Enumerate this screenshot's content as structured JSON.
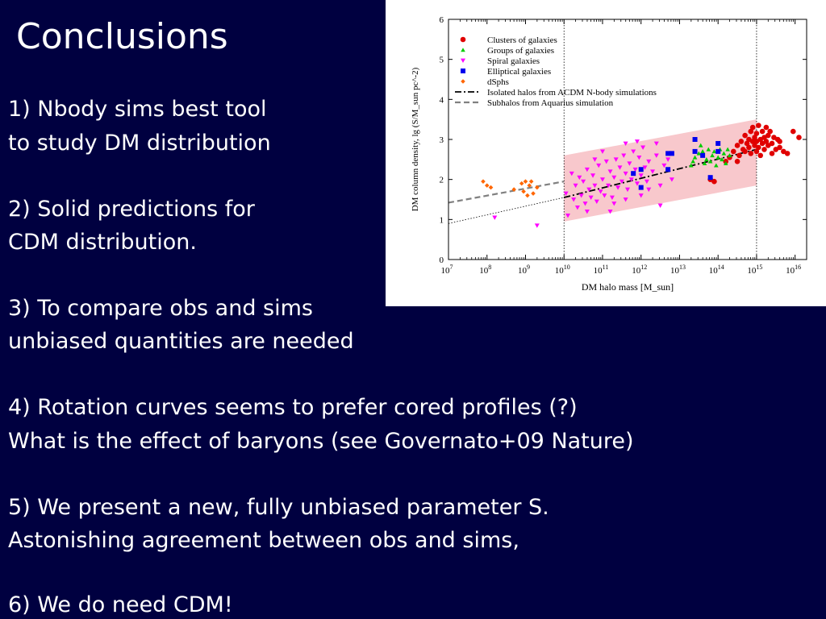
{
  "slide": {
    "title": "Conclusions",
    "lines": [
      "1) Nbody sims best tool",
      "to study DM distribution",
      "2) Solid predictions for",
      "CDM distribution.",
      "3) To compare obs and sims",
      "unbiased quantities are needed",
      "4) Rotation curves seems to prefer cored profiles (?)",
      "What is the effect of baryons (see Governato+09 Nature)",
      "5) We present a new, fully unbiased parameter S.",
      "Astonishing agreement between obs and sims,",
      "6) We do need CDM!"
    ]
  },
  "chart_data": {
    "type": "scatter",
    "xlabel": "DM halo mass [M_sun]",
    "ylabel": "DM column density, lg (S/M_sun pc^-2)",
    "x_scale": "log",
    "xlim": [
      7,
      16.3
    ],
    "ylim": [
      0,
      6
    ],
    "x_ticks": [
      {
        "exp": 7,
        "label": "10",
        "sup": "7"
      },
      {
        "exp": 8,
        "label": "10",
        "sup": "8"
      },
      {
        "exp": 9,
        "label": "10",
        "sup": "9"
      },
      {
        "exp": 10,
        "label": "10",
        "sup": "10"
      },
      {
        "exp": 11,
        "label": "10",
        "sup": "11"
      },
      {
        "exp": 12,
        "label": "10",
        "sup": "12"
      },
      {
        "exp": 13,
        "label": "10",
        "sup": "13"
      },
      {
        "exp": 14,
        "label": "10",
        "sup": "14"
      },
      {
        "exp": 15,
        "label": "10",
        "sup": "15"
      },
      {
        "exp": 16,
        "label": "10",
        "sup": "16"
      }
    ],
    "y_ticks": [
      "0",
      "1",
      "2",
      "3",
      "4",
      "5",
      "6"
    ],
    "legend_position": "top-left",
    "band": {
      "color": "#f8c8cc",
      "x": [
        10,
        15
      ],
      "lower": [
        0.95,
        1.85
      ],
      "upper": [
        2.6,
        3.5
      ]
    },
    "vertical_lines_x": [
      10,
      15
    ],
    "series": [
      {
        "name": "Clusters of galaxies",
        "marker": "circle",
        "color": "#e00000",
        "points": [
          [
            14.4,
            2.7
          ],
          [
            14.5,
            2.85
          ],
          [
            14.55,
            2.6
          ],
          [
            14.6,
            2.95
          ],
          [
            14.65,
            2.75
          ],
          [
            14.7,
            3.1
          ],
          [
            14.7,
            2.7
          ],
          [
            14.75,
            2.9
          ],
          [
            14.8,
            3.0
          ],
          [
            14.8,
            2.8
          ],
          [
            14.85,
            3.2
          ],
          [
            14.85,
            2.65
          ],
          [
            14.9,
            2.95
          ],
          [
            14.9,
            3.3
          ],
          [
            14.95,
            2.85
          ],
          [
            14.95,
            3.05
          ],
          [
            15.0,
            2.7
          ],
          [
            15.0,
            3.15
          ],
          [
            15.0,
            2.95
          ],
          [
            15.05,
            3.35
          ],
          [
            15.05,
            2.8
          ],
          [
            15.1,
            3.0
          ],
          [
            15.1,
            2.6
          ],
          [
            15.15,
            3.2
          ],
          [
            15.15,
            2.9
          ],
          [
            15.2,
            3.05
          ],
          [
            15.2,
            2.75
          ],
          [
            15.25,
            3.3
          ],
          [
            15.25,
            2.95
          ],
          [
            15.3,
            2.85
          ],
          [
            15.3,
            3.1
          ],
          [
            15.35,
            3.2
          ],
          [
            15.4,
            2.9
          ],
          [
            15.45,
            3.05
          ],
          [
            15.5,
            2.75
          ],
          [
            15.55,
            3.0
          ],
          [
            15.6,
            2.8
          ],
          [
            15.7,
            2.7
          ],
          [
            15.8,
            2.65
          ],
          [
            15.95,
            3.2
          ],
          [
            16.1,
            3.05
          ],
          [
            14.3,
            2.55
          ],
          [
            14.2,
            2.45
          ],
          [
            13.9,
            1.95
          ],
          [
            13.8,
            2.0
          ],
          [
            14.5,
            2.45
          ],
          [
            15.4,
            2.65
          ],
          [
            15.6,
            2.95
          ]
        ]
      },
      {
        "name": "Groups of galaxies",
        "marker": "triangle-up",
        "color": "#00cc00",
        "points": [
          [
            13.3,
            2.35
          ],
          [
            13.35,
            2.45
          ],
          [
            13.4,
            2.55
          ],
          [
            13.5,
            2.65
          ],
          [
            13.6,
            2.7
          ],
          [
            13.7,
            2.5
          ],
          [
            13.75,
            2.75
          ],
          [
            13.8,
            2.45
          ],
          [
            13.85,
            2.6
          ],
          [
            13.9,
            2.7
          ],
          [
            14.0,
            2.55
          ],
          [
            14.05,
            2.75
          ],
          [
            14.1,
            2.5
          ],
          [
            14.15,
            2.65
          ],
          [
            14.2,
            2.4
          ],
          [
            14.3,
            2.6
          ],
          [
            13.55,
            2.85
          ],
          [
            13.65,
            2.4
          ],
          [
            14.25,
            2.75
          ],
          [
            13.95,
            2.35
          ]
        ]
      },
      {
        "name": "Spiral galaxies",
        "marker": "triangle-down",
        "color": "#ff00ff",
        "points": [
          [
            8.2,
            1.05
          ],
          [
            9.3,
            0.85
          ],
          [
            10.05,
            1.65
          ],
          [
            10.1,
            1.1
          ],
          [
            10.2,
            2.15
          ],
          [
            10.25,
            1.5
          ],
          [
            10.3,
            1.85
          ],
          [
            10.35,
            1.3
          ],
          [
            10.4,
            2.05
          ],
          [
            10.45,
            1.6
          ],
          [
            10.5,
            1.95
          ],
          [
            10.55,
            1.4
          ],
          [
            10.6,
            2.25
          ],
          [
            10.65,
            1.75
          ],
          [
            10.7,
            1.55
          ],
          [
            10.75,
            2.1
          ],
          [
            10.8,
            1.85
          ],
          [
            10.85,
            1.45
          ],
          [
            10.9,
            2.35
          ],
          [
            10.95,
            1.7
          ],
          [
            11.0,
            2.0
          ],
          [
            11.05,
            1.6
          ],
          [
            11.1,
            2.45
          ],
          [
            11.15,
            1.85
          ],
          [
            11.2,
            2.2
          ],
          [
            11.25,
            1.55
          ],
          [
            11.3,
            2.05
          ],
          [
            11.35,
            2.5
          ],
          [
            11.4,
            1.8
          ],
          [
            11.45,
            2.3
          ],
          [
            11.5,
            1.95
          ],
          [
            11.55,
            2.6
          ],
          [
            11.6,
            2.15
          ],
          [
            11.65,
            1.75
          ],
          [
            11.7,
            2.4
          ],
          [
            11.75,
            2.0
          ],
          [
            11.8,
            2.7
          ],
          [
            11.85,
            2.25
          ],
          [
            11.9,
            1.9
          ],
          [
            11.95,
            2.55
          ],
          [
            12.0,
            2.1
          ],
          [
            12.05,
            2.8
          ],
          [
            12.1,
            2.3
          ],
          [
            12.15,
            1.95
          ],
          [
            12.2,
            2.45
          ],
          [
            12.3,
            2.2
          ],
          [
            12.4,
            2.6
          ],
          [
            12.5,
            1.85
          ],
          [
            12.6,
            2.35
          ],
          [
            12.7,
            2.5
          ],
          [
            12.8,
            2.0
          ],
          [
            11.3,
            1.4
          ],
          [
            11.6,
            1.5
          ],
          [
            11.0,
            2.7
          ],
          [
            11.6,
            2.9
          ],
          [
            12.0,
            1.6
          ],
          [
            12.2,
            1.75
          ],
          [
            12.5,
            1.35
          ],
          [
            11.9,
            2.95
          ],
          [
            10.6,
            1.2
          ],
          [
            11.2,
            1.2
          ],
          [
            10.8,
            2.5
          ],
          [
            12.4,
            2.9
          ]
        ]
      },
      {
        "name": "Elliptical galaxies",
        "marker": "square",
        "color": "#0000ee",
        "points": [
          [
            11.8,
            2.15
          ],
          [
            12.0,
            2.25
          ],
          [
            12.0,
            1.8
          ],
          [
            12.7,
            2.65
          ],
          [
            12.8,
            2.65
          ],
          [
            12.7,
            2.25
          ],
          [
            13.4,
            2.7
          ],
          [
            13.4,
            3.0
          ],
          [
            13.6,
            2.6
          ],
          [
            13.8,
            2.05
          ],
          [
            14.0,
            2.7
          ],
          [
            14.0,
            2.9
          ]
        ]
      },
      {
        "name": "dSphs",
        "marker": "diamond",
        "color": "#ff6600",
        "points": [
          [
            7.9,
            1.95
          ],
          [
            8.0,
            1.85
          ],
          [
            8.1,
            1.8
          ],
          [
            8.7,
            1.75
          ],
          [
            8.9,
            1.9
          ],
          [
            8.95,
            1.7
          ],
          [
            9.0,
            1.95
          ],
          [
            9.05,
            1.6
          ],
          [
            9.1,
            1.85
          ],
          [
            9.15,
            1.95
          ],
          [
            9.2,
            1.65
          ],
          [
            9.3,
            1.8
          ]
        ]
      }
    ],
    "lines": [
      {
        "name": "Isolated halos from ACDM N-body simulations",
        "style": "dash-dot",
        "color": "#000000",
        "x": [
          10,
          15
        ],
        "y": [
          1.55,
          2.75
        ]
      },
      {
        "name": "Subhalos from Aquarius simulation",
        "style": "dashed",
        "color": "#808080",
        "x": [
          7,
          10
        ],
        "y": [
          1.42,
          1.95
        ]
      },
      {
        "name": "",
        "style": "dotted",
        "color": "#000000",
        "x": [
          7,
          10
        ],
        "y": [
          0.9,
          1.55
        ]
      }
    ]
  }
}
